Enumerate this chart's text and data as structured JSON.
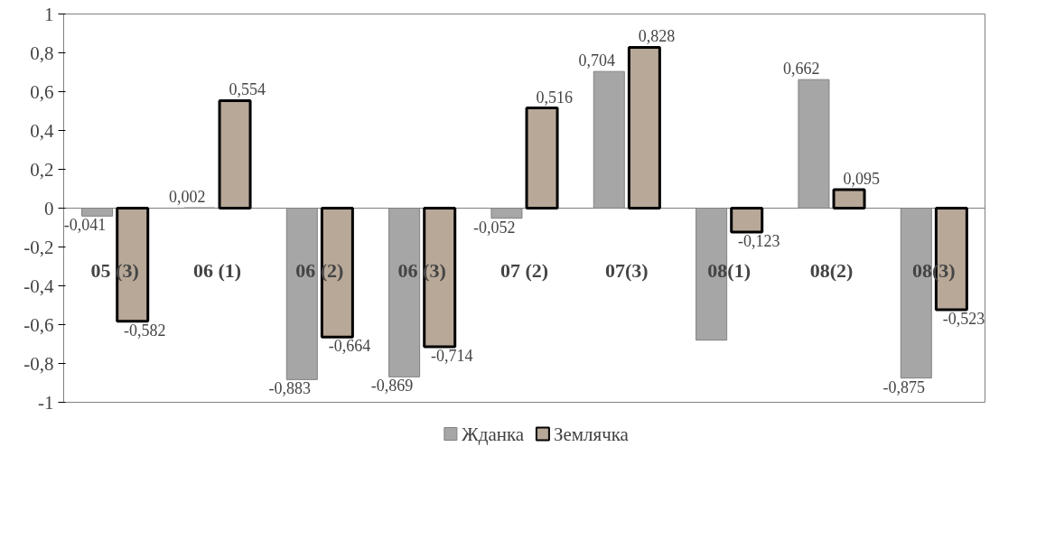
{
  "chart_data": {
    "type": "bar",
    "categories": [
      "05 (3)",
      "06 (1)",
      "06 (2)",
      "06 (3)",
      "07 (2)",
      "07(3)",
      "08(1)",
      "08(2)",
      "08(3)"
    ],
    "series": [
      {
        "name": "Жданка",
        "color": "#a6a6a6",
        "values": [
          -0.041,
          0.002,
          -0.883,
          -0.869,
          -0.052,
          0.704,
          -0.68,
          0.662,
          -0.875
        ],
        "value_labels": [
          "-0,041",
          "0,002",
          "-0,883",
          "-0,869",
          "-0,052",
          "0,704",
          null,
          "0,662",
          "-0,875"
        ]
      },
      {
        "name": "Землячка",
        "color": "#b8a898",
        "values": [
          -0.582,
          0.554,
          -0.664,
          -0.714,
          0.516,
          0.828,
          -0.123,
          0.095,
          -0.523
        ],
        "value_labels": [
          "-0,582",
          "0,554",
          "-0,664",
          "-0,714",
          "0,516",
          "0,828",
          "-0,123",
          "0,095",
          "-0,523"
        ]
      }
    ],
    "ylim": [
      -1,
      1
    ],
    "yticks": [
      {
        "value": -1,
        "label": "-1"
      },
      {
        "value": -0.8,
        "label": "-0,8"
      },
      {
        "value": -0.6,
        "label": "-0,6"
      },
      {
        "value": -0.4,
        "label": "-0,4"
      },
      {
        "value": -0.2,
        "label": "-0,2"
      },
      {
        "value": 0,
        "label": "0"
      },
      {
        "value": 0.2,
        "label": "0,2"
      },
      {
        "value": 0.4,
        "label": "0,4"
      },
      {
        "value": 0.6,
        "label": "0,6"
      },
      {
        "value": 0.8,
        "label": "0,8"
      },
      {
        "value": 1,
        "label": "1"
      }
    ],
    "grid": false,
    "legend": "bottom"
  }
}
